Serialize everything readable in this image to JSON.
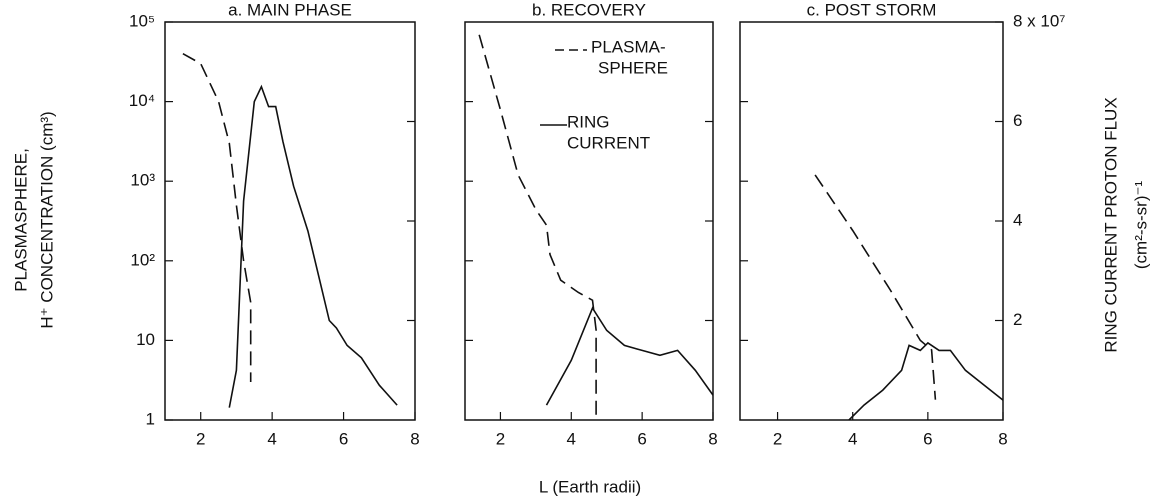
{
  "figure": {
    "x_label": "L (Earth radii)",
    "y_label": [
      "PLASMASPHERE,",
      "H⁺ CONCENTRATION (cm³)"
    ],
    "y2_label": [
      "RING CURRENT PROTON FLUX",
      "(cm²-s-sr)⁻¹"
    ]
  },
  "chart_data": [
    {
      "type": "line",
      "title": "a. MAIN PHASE",
      "xlim": [
        1,
        8
      ],
      "xticks": [
        2,
        4,
        6,
        8
      ],
      "ylim": [
        1,
        100000
      ],
      "log_y": true,
      "yticks": [
        1,
        10,
        {
          "value": 100,
          "label": "10²"
        },
        {
          "value": 1000,
          "label": "10³"
        },
        {
          "value": 10000,
          "label": "10⁴"
        },
        {
          "value": 100000,
          "label": "10⁵"
        }
      ],
      "y2lim": [
        0,
        80000000
      ],
      "y2ticks": [
        20000000,
        40000000,
        60000000
      ],
      "series": [
        {
          "dashed": true,
          "color": "#111",
          "x": [
            1.5,
            2,
            2.5,
            2.8,
            3.0,
            3.2,
            3.4,
            3.4
          ],
          "values": [
            40000,
            30000,
            10000,
            3000,
            500,
            100,
            30,
            3
          ]
        },
        {
          "dashed": false,
          "axis": "y2",
          "color": "#111",
          "x": [
            2.8,
            3.0,
            3.2,
            3.5,
            3.7,
            3.9,
            4.1,
            4.3,
            4.6,
            5.0,
            5.3,
            5.6,
            5.8,
            6.1,
            6.5,
            7.0,
            7.5
          ],
          "values": [
            2500000,
            10000000,
            44000000,
            64000000,
            67000000,
            63000000,
            63000000,
            56000000,
            47000000,
            38000000,
            29000000,
            20000000,
            18500000,
            15000000,
            12500000,
            7000000,
            3000000
          ]
        }
      ]
    },
    {
      "type": "line",
      "title": "b. RECOVERY",
      "xlim": [
        1,
        8
      ],
      "xticks": [
        2,
        4,
        6,
        8
      ],
      "ylim": [
        1,
        100000
      ],
      "log_y": true,
      "yticks": [
        10,
        100,
        1000,
        10000
      ],
      "y2lim": [
        0,
        80000000
      ],
      "y2ticks": [
        20000000,
        40000000,
        60000000
      ],
      "series": [
        {
          "name": [
            "PLASMA-",
            "SPHERE"
          ],
          "dashed": true,
          "color": "#111",
          "x": [
            1.4,
            2,
            2.5,
            3,
            3.3,
            3.4,
            3.7,
            4.2,
            4.6,
            4.7,
            4.7
          ],
          "values": [
            69000,
            7900,
            1200,
            440,
            280,
            120,
            57,
            40,
            32,
            13.5,
            1.15
          ]
        },
        {
          "name": [
            "RING",
            "CURRENT"
          ],
          "dashed": false,
          "axis": "y2",
          "color": "#111",
          "x": [
            3.3,
            4.0,
            4.6,
            5.0,
            5.5,
            6.0,
            6.5,
            7.0,
            7.5,
            8.0
          ],
          "values": [
            3000000,
            12000000,
            22500000,
            18000000,
            15000000,
            14000000,
            13000000,
            14000000,
            10000000,
            5000000
          ]
        }
      ]
    },
    {
      "type": "line",
      "title": "c. POST STORM",
      "xlim": [
        1,
        8
      ],
      "xticks": [
        2,
        4,
        6,
        8
      ],
      "ylim": [
        1,
        100000
      ],
      "log_y": true,
      "yticks": [
        10,
        100,
        1000,
        10000
      ],
      "y2lim": [
        0,
        80000000
      ],
      "y2ticks": [
        {
          "value": 20000000,
          "label": "2"
        },
        {
          "value": 40000000,
          "label": "4"
        },
        {
          "value": 60000000,
          "label": "6"
        },
        {
          "value": 80000000,
          "label": "8 x 10⁷"
        }
      ],
      "series": [
        {
          "dashed": true,
          "color": "#111",
          "x": [
            3,
            4,
            5,
            5.8,
            6.1,
            6.2
          ],
          "values": [
            1200,
            240,
            43,
            10,
            7.6,
            1.8
          ]
        },
        {
          "dashed": false,
          "axis": "y2",
          "color": "#111",
          "x": [
            3.9,
            4.3,
            4.8,
            5.3,
            5.5,
            5.8,
            6.0,
            6.3,
            6.6,
            7.0,
            8.0
          ],
          "values": [
            0,
            3000000,
            6000000,
            10000000,
            15000000,
            14000000,
            15500000,
            14000000,
            14000000,
            10000000,
            4000000
          ]
        }
      ]
    }
  ]
}
